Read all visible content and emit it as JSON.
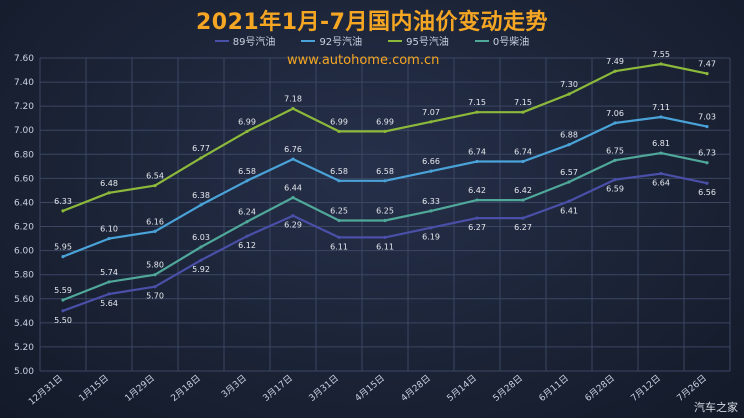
{
  "chart_data": {
    "type": "line",
    "title": "2021年1月-7月国内油价变动走势",
    "categories": [
      "12月31日",
      "1月15日",
      "1月29日",
      "2月18日",
      "3月3日",
      "3月17日",
      "3月31日",
      "4月15日",
      "4月28日",
      "5月14日",
      "5月28日",
      "6月11日",
      "6月28日",
      "7月12日",
      "7月26日"
    ],
    "ylim": [
      5.0,
      7.6
    ],
    "yticks": [
      "5.00",
      "5.20",
      "5.40",
      "5.60",
      "5.80",
      "6.00",
      "6.20",
      "6.40",
      "6.60",
      "6.80",
      "7.00",
      "7.20",
      "7.40",
      "7.60"
    ],
    "grid": true,
    "legend_position": "top",
    "series": [
      {
        "name": "89号汽油",
        "color": "#4a4fa8",
        "values": [
          5.5,
          5.64,
          5.7,
          5.92,
          6.12,
          6.29,
          6.11,
          6.11,
          6.19,
          6.27,
          6.27,
          6.41,
          6.59,
          6.64,
          6.56
        ],
        "labels": [
          "5.50",
          "5.64",
          "5.70",
          "5.92",
          "6.12",
          "6.29",
          "6.11",
          "6.11",
          "6.19",
          "6.27",
          "6.27",
          "6.41",
          "6.59",
          "6.64",
          "6.56"
        ]
      },
      {
        "name": "92号汽油",
        "color": "#4aa3d8",
        "values": [
          5.95,
          6.1,
          6.16,
          6.38,
          6.58,
          6.76,
          6.58,
          6.58,
          6.66,
          6.74,
          6.74,
          6.88,
          7.06,
          7.11,
          7.03
        ],
        "labels": [
          "5.95",
          "6.10",
          "6.16",
          "6.38",
          "6.58",
          "6.76",
          "6.58",
          "6.58",
          "6.66",
          "6.74",
          "6.74",
          "6.88",
          "7.06",
          "7.11",
          "7.03"
        ]
      },
      {
        "name": "95号汽油",
        "color": "#8db93b",
        "values": [
          6.33,
          6.48,
          6.54,
          6.77,
          6.99,
          7.18,
          6.99,
          6.99,
          7.07,
          7.15,
          7.15,
          7.3,
          7.49,
          7.55,
          7.47
        ],
        "labels": [
          "6.33",
          "6.48",
          "6.54",
          "6.77",
          "6.99",
          "7.18",
          "6.99",
          "6.99",
          "7.07",
          "7.15",
          "7.15",
          "7.30",
          "7.49",
          "7.55",
          "7.47"
        ]
      },
      {
        "name": "0号柴油",
        "color": "#4fa89a",
        "values": [
          5.59,
          5.74,
          5.8,
          6.03,
          6.24,
          6.44,
          6.25,
          6.25,
          6.33,
          6.42,
          6.42,
          6.57,
          6.75,
          6.81,
          6.73
        ],
        "labels": [
          "5.59",
          "5.74",
          "5.80",
          "6.03",
          "6.24",
          "6.44",
          "6.25",
          "6.25",
          "6.33",
          "6.42",
          "6.42",
          "6.57",
          "6.75",
          "6.81",
          "6.73"
        ]
      }
    ]
  },
  "watermark": {
    "url": "www.autohome.com.cn",
    "brand": "汽车之家"
  }
}
